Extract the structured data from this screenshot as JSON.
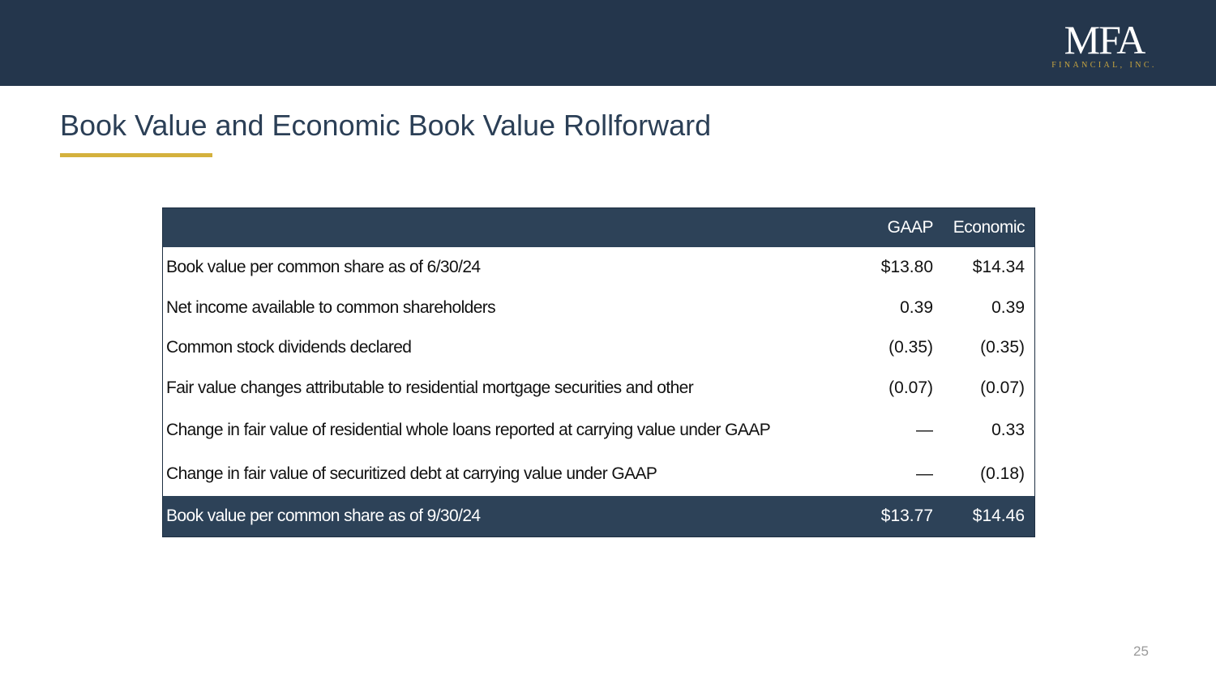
{
  "header": {
    "logo_text": "MFA",
    "logo_subtext": "FINANCIAL, INC.",
    "bar_color": "#24364c",
    "accent_color": "#d4b13d"
  },
  "slide": {
    "title": "Book Value and Economic Book Value Rollforward",
    "page_number": "25"
  },
  "table": {
    "columns": [
      "",
      "GAAP",
      "Economic"
    ],
    "rows": [
      {
        "label": "Book value per common share as of 6/30/24",
        "gaap": "$13.80",
        "economic": "$14.34"
      },
      {
        "label": "Net income available to common shareholders",
        "gaap": "0.39",
        "economic": "0.39"
      },
      {
        "label": "Common stock dividends declared",
        "gaap": "(0.35)",
        "economic": "(0.35)"
      },
      {
        "label": "Fair value changes attributable to residential mortgage securities and other",
        "gaap": "(0.07)",
        "economic": "(0.07)"
      },
      {
        "label": "Change in fair value of residential whole loans reported at carrying value under GAAP",
        "gaap": "—",
        "economic": "0.33"
      },
      {
        "label": "Change in fair value of securitized debt at carrying value under GAAP",
        "gaap": "—",
        "economic": "(0.18)"
      }
    ],
    "total": {
      "label": "Book value per common share as of 9/30/24",
      "gaap": "$13.77",
      "economic": "$14.46"
    }
  }
}
